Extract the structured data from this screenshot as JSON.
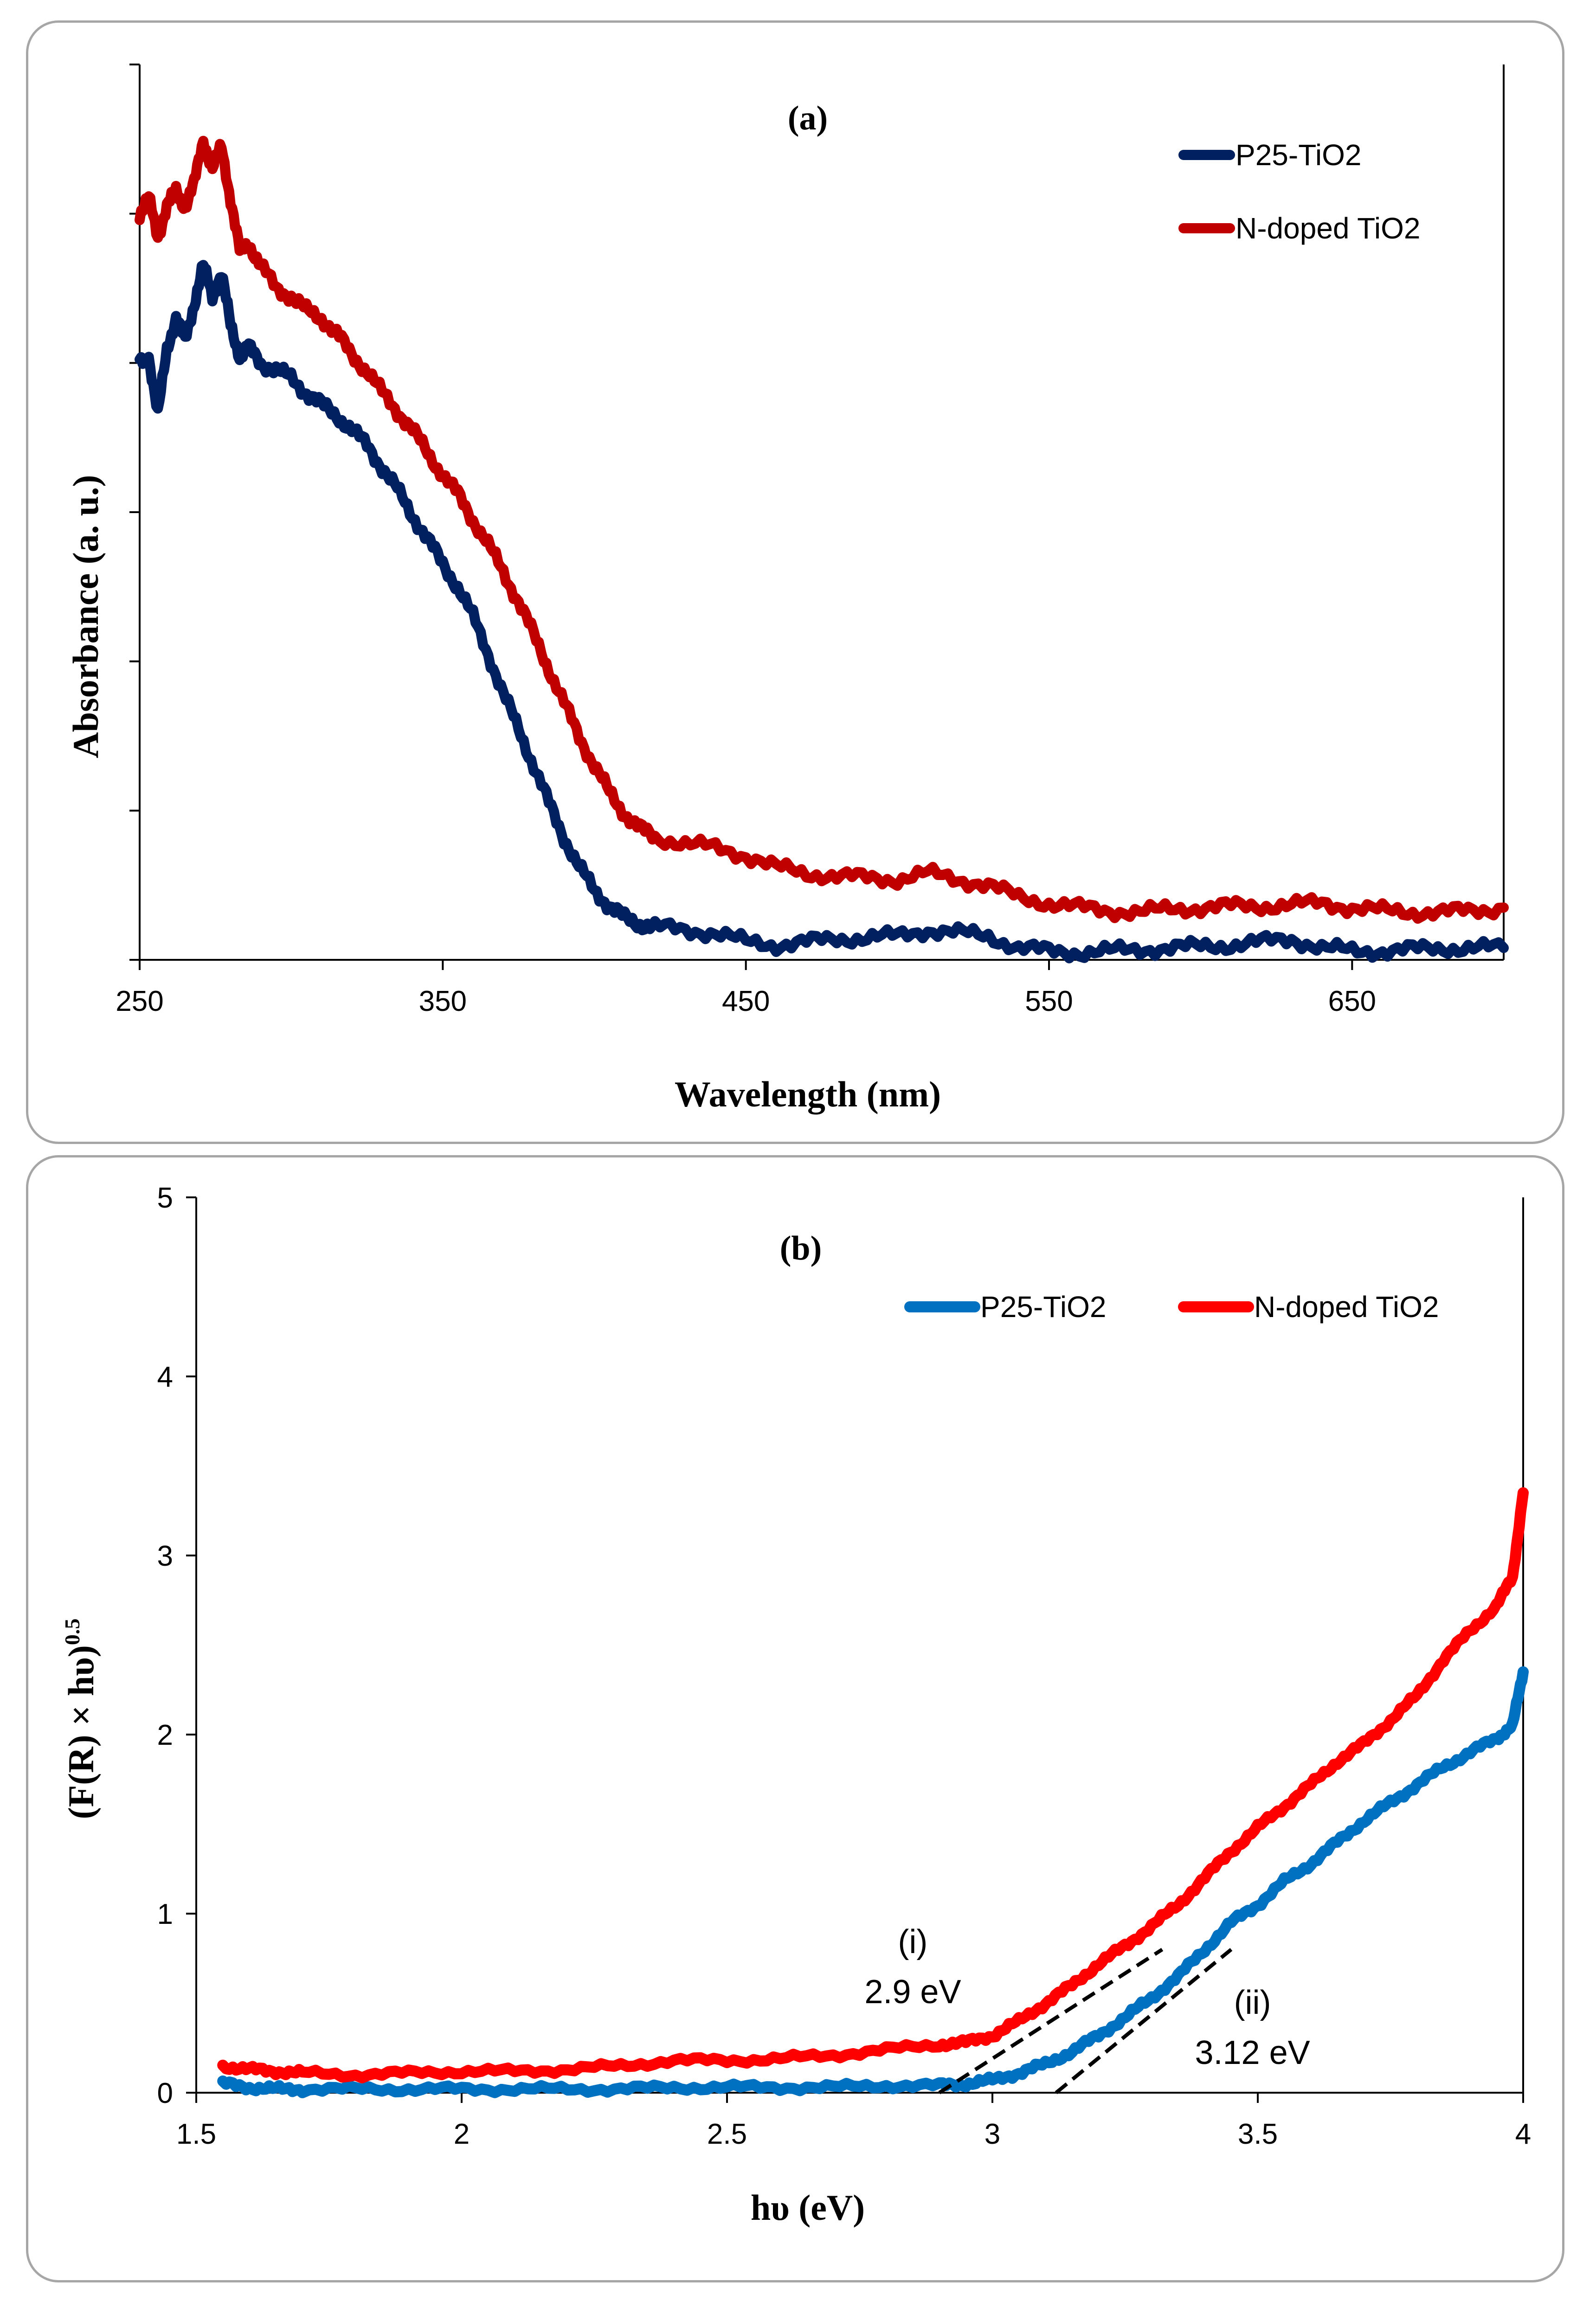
{
  "chart_data": [
    {
      "type": "line",
      "panel_label": "(a)",
      "xlabel": "Wavelength (nm)",
      "ylabel": "Absorbance (a. u.)",
      "xlim": [
        250,
        700
      ],
      "ylim": [
        0,
        6
      ],
      "x_ticks": [
        250,
        350,
        450,
        550,
        650
      ],
      "x_tick_labels": [
        "250",
        "350",
        "450",
        "550",
        "650"
      ],
      "y_ticks": [
        0,
        1,
        2,
        3,
        4,
        5,
        6
      ],
      "y_tick_labels_shown": false,
      "grid": false,
      "legend_position": "top-right",
      "series": [
        {
          "name": "P25-TiO2",
          "color": "#002060",
          "x": [
            250,
            253,
            256,
            259,
            262,
            265,
            268,
            271,
            274,
            277,
            280,
            283,
            286,
            290,
            295,
            300,
            305,
            310,
            315,
            320,
            325,
            330,
            335,
            340,
            345,
            350,
            355,
            360,
            365,
            370,
            375,
            380,
            385,
            390,
            395,
            400,
            405,
            410,
            415,
            420,
            430,
            440,
            450,
            460,
            470,
            480,
            490,
            500,
            510,
            520,
            530,
            540,
            550,
            560,
            570,
            580,
            590,
            600,
            610,
            620,
            630,
            640,
            650,
            660,
            670,
            680,
            690,
            700
          ],
          "values": [
            4.0,
            4.05,
            3.65,
            4.1,
            4.3,
            4.15,
            4.4,
            4.65,
            4.45,
            4.6,
            4.25,
            4.05,
            4.1,
            4.0,
            3.95,
            3.9,
            3.8,
            3.72,
            3.65,
            3.55,
            3.45,
            3.3,
            3.15,
            2.98,
            2.82,
            2.65,
            2.5,
            2.3,
            2.05,
            1.78,
            1.55,
            1.3,
            1.05,
            0.82,
            0.62,
            0.47,
            0.36,
            0.28,
            0.24,
            0.22,
            0.2,
            0.18,
            0.12,
            0.1,
            0.12,
            0.14,
            0.15,
            0.16,
            0.2,
            0.18,
            0.16,
            0.08,
            0.06,
            0.05,
            0.06,
            0.07,
            0.08,
            0.09,
            0.1,
            0.12,
            0.14,
            0.08,
            0.06,
            0.06,
            0.07,
            0.08,
            0.08,
            0.08
          ]
        },
        {
          "name": "N-doped TiO2",
          "color": "#C00000",
          "x": [
            250,
            253,
            256,
            259,
            262,
            265,
            268,
            271,
            274,
            277,
            280,
            283,
            286,
            290,
            295,
            300,
            305,
            310,
            315,
            320,
            325,
            330,
            335,
            340,
            345,
            350,
            355,
            360,
            365,
            370,
            375,
            380,
            385,
            390,
            395,
            400,
            405,
            410,
            415,
            420,
            430,
            440,
            450,
            460,
            470,
            480,
            490,
            500,
            510,
            520,
            530,
            540,
            550,
            560,
            570,
            580,
            590,
            600,
            610,
            620,
            630,
            640,
            650,
            660,
            670,
            680,
            690,
            700
          ],
          "values": [
            5.0,
            5.1,
            4.85,
            5.05,
            5.15,
            5.05,
            5.2,
            5.5,
            5.3,
            5.45,
            5.1,
            4.75,
            4.8,
            4.65,
            4.5,
            4.45,
            4.35,
            4.3,
            4.2,
            4.05,
            3.95,
            3.8,
            3.68,
            3.55,
            3.4,
            3.25,
            3.12,
            2.95,
            2.78,
            2.6,
            2.4,
            2.18,
            1.95,
            1.72,
            1.5,
            1.3,
            1.12,
            0.98,
            0.88,
            0.82,
            0.78,
            0.75,
            0.7,
            0.62,
            0.58,
            0.56,
            0.55,
            0.54,
            0.58,
            0.54,
            0.5,
            0.42,
            0.38,
            0.35,
            0.33,
            0.32,
            0.34,
            0.35,
            0.36,
            0.36,
            0.37,
            0.38,
            0.35,
            0.33,
            0.32,
            0.32,
            0.33,
            0.35
          ]
        }
      ]
    },
    {
      "type": "line",
      "panel_label": "(b)",
      "xlabel": "hυ (eV)",
      "ylabel": "(F(R) × hυ)",
      "ylabel_superscript": "0.5",
      "xlim": [
        1.5,
        4
      ],
      "ylim": [
        0,
        5
      ],
      "x_ticks": [
        1.5,
        2,
        2.5,
        3,
        3.5,
        4
      ],
      "x_tick_labels": [
        "1.5",
        "2",
        "2.5",
        "3",
        "3.5",
        "4"
      ],
      "y_ticks": [
        0,
        1,
        2,
        3,
        4,
        5
      ],
      "y_tick_labels": [
        "0",
        "1",
        "2",
        "3",
        "4",
        "5"
      ],
      "grid": false,
      "legend_position": "top-right",
      "series": [
        {
          "name": "P25-TiO2",
          "color": "#0070C0",
          "x": [
            1.55,
            1.6,
            1.65,
            1.7,
            1.8,
            1.9,
            2.0,
            2.1,
            2.2,
            2.3,
            2.4,
            2.5,
            2.6,
            2.7,
            2.8,
            2.9,
            2.95,
            3.0,
            3.05,
            3.1,
            3.15,
            3.2,
            3.25,
            3.3,
            3.35,
            3.4,
            3.45,
            3.5,
            3.55,
            3.6,
            3.65,
            3.7,
            3.75,
            3.8,
            3.85,
            3.9,
            3.95,
            3.98,
            4.0
          ],
          "values": [
            0.05,
            0.03,
            0.02,
            0.02,
            0.02,
            0.02,
            0.02,
            0.02,
            0.02,
            0.02,
            0.03,
            0.03,
            0.03,
            0.03,
            0.04,
            0.04,
            0.05,
            0.07,
            0.11,
            0.16,
            0.23,
            0.32,
            0.42,
            0.53,
            0.65,
            0.8,
            0.95,
            1.05,
            1.18,
            1.28,
            1.4,
            1.52,
            1.62,
            1.72,
            1.82,
            1.9,
            1.98,
            2.05,
            2.35
          ]
        },
        {
          "name": "N-doped TiO2",
          "color": "#FF0000",
          "x": [
            1.55,
            1.6,
            1.65,
            1.7,
            1.8,
            1.9,
            2.0,
            2.1,
            2.2,
            2.3,
            2.4,
            2.5,
            2.6,
            2.7,
            2.8,
            2.9,
            2.95,
            3.0,
            3.05,
            3.1,
            3.15,
            3.2,
            3.25,
            3.3,
            3.35,
            3.4,
            3.45,
            3.5,
            3.55,
            3.6,
            3.65,
            3.7,
            3.75,
            3.8,
            3.85,
            3.9,
            3.95,
            3.98,
            4.0
          ],
          "values": [
            0.15,
            0.13,
            0.12,
            0.11,
            0.1,
            0.11,
            0.12,
            0.12,
            0.13,
            0.15,
            0.18,
            0.18,
            0.19,
            0.21,
            0.24,
            0.27,
            0.28,
            0.32,
            0.4,
            0.5,
            0.6,
            0.72,
            0.82,
            0.93,
            1.05,
            1.2,
            1.35,
            1.48,
            1.6,
            1.72,
            1.85,
            1.95,
            2.08,
            2.22,
            2.42,
            2.58,
            2.72,
            2.88,
            3.35
          ]
        }
      ],
      "tangent_lines": [
        {
          "name": "tangent-i",
          "x": [
            2.9,
            3.32
          ],
          "values": [
            0.0,
            0.8
          ]
        },
        {
          "name": "tangent-ii",
          "x": [
            3.12,
            3.45
          ],
          "values": [
            0.0,
            0.8
          ]
        }
      ],
      "annotations": [
        {
          "name": "annot-i-label",
          "text": "(i)",
          "x": 2.85,
          "y": 0.78
        },
        {
          "name": "annot-i-value",
          "text": "2.9 eV",
          "x": 2.85,
          "y": 0.5
        },
        {
          "name": "annot-ii-label",
          "text": "(ii)",
          "x": 3.49,
          "y": 0.44
        },
        {
          "name": "annot-ii-value",
          "text": "3.12 eV",
          "x": 3.49,
          "y": 0.16
        }
      ]
    }
  ]
}
